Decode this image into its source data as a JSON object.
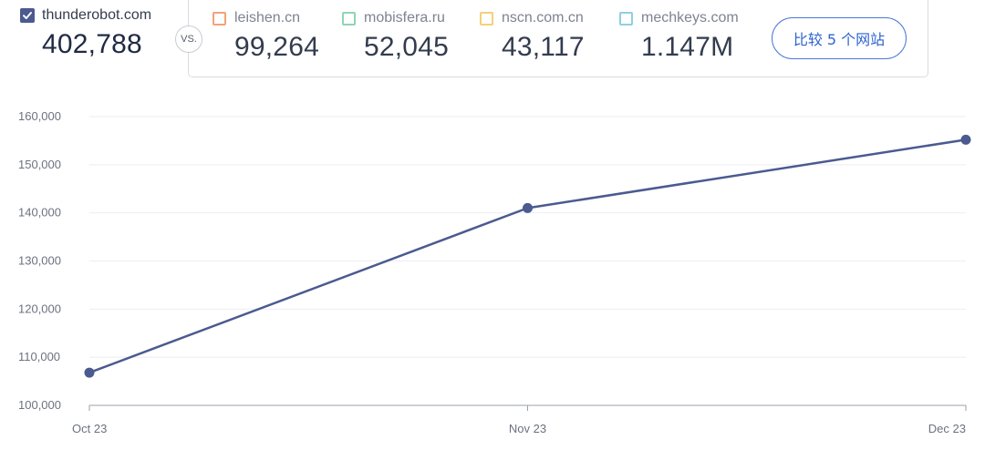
{
  "primary_site": {
    "name": "thunderobot.com",
    "value": "402,788",
    "checkbox_color": "#4b5a8f",
    "checkbox_icon": "checkmark-icon"
  },
  "vs_label": "VS.",
  "competitors": [
    {
      "name": "leishen.cn",
      "value": "99,264",
      "color": "#f0a37a"
    },
    {
      "name": "mobisfera.ru",
      "value": "52,045",
      "color": "#8fd4b5"
    },
    {
      "name": "nscn.com.cn",
      "value": "43,117",
      "color": "#f5cf7a"
    },
    {
      "name": "mechkeys.com",
      "value": "1.147M",
      "color": "#8ecfe3"
    }
  ],
  "compare_button_label": "比较 5 个网站",
  "chart_data": {
    "type": "line",
    "categories": [
      "Oct 23",
      "Nov 23",
      "Dec 23"
    ],
    "series": [
      {
        "values": [
          106800,
          141000,
          155200
        ],
        "color": "#4b5a8f"
      }
    ],
    "ylim": [
      100000,
      160000
    ],
    "yticks": [
      100000,
      110000,
      120000,
      130000,
      140000,
      150000,
      160000
    ],
    "ytick_labels": [
      "100,000",
      "110,000",
      "120,000",
      "130,000",
      "140,000",
      "150,000",
      "160,000"
    ],
    "grid": true
  }
}
